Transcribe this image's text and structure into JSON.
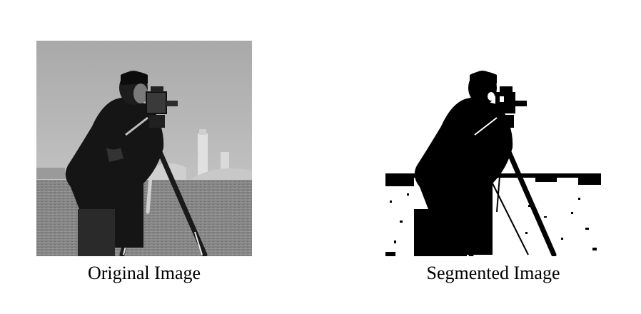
{
  "figure": {
    "left_panel": {
      "caption": "Original Image",
      "subject": "cameraman-photo"
    },
    "right_panel": {
      "caption": "Segmented Image",
      "subject": "cameraman-binary-segmentation"
    },
    "colors": {
      "background": "#ffffff",
      "sky": "#b4b4b4",
      "grass": "#8a8a8a",
      "figure": "#141414",
      "segmented_fg": "#000000",
      "segmented_bg": "#ffffff"
    }
  }
}
